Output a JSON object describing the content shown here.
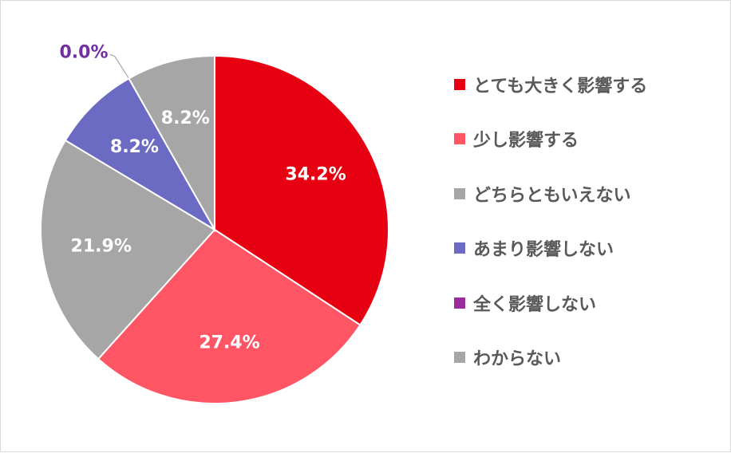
{
  "chart_data": {
    "type": "pie",
    "title": "",
    "start_angle_deg": 0,
    "direction": "clockwise",
    "legend_position": "right",
    "slices": [
      {
        "label": "とても大きく影響する",
        "value": 34.2,
        "value_label": "34.2%",
        "color": "#e60012",
        "label_color": "#ffffff"
      },
      {
        "label": "少し影響する",
        "value": 27.4,
        "value_label": "27.4%",
        "color": "#ff5564",
        "label_color": "#ffffff"
      },
      {
        "label": "どちらともいえない",
        "value": 21.9,
        "value_label": "21.9%",
        "color": "#a6a6a6",
        "label_color": "#ffffff"
      },
      {
        "label": "あまり影響しない",
        "value": 8.2,
        "value_label": "8.2%",
        "color": "#6b6bc4",
        "label_color": "#ffffff"
      },
      {
        "label": "全く影響しない",
        "value": 0.0,
        "value_label": "0.0%",
        "color": "#9b2d9b",
        "label_color": "#7030a0"
      },
      {
        "label": "わからない",
        "value": 8.2,
        "value_label": "8.2%",
        "color": "#a6a6a6",
        "label_color": "#ffffff"
      }
    ]
  }
}
